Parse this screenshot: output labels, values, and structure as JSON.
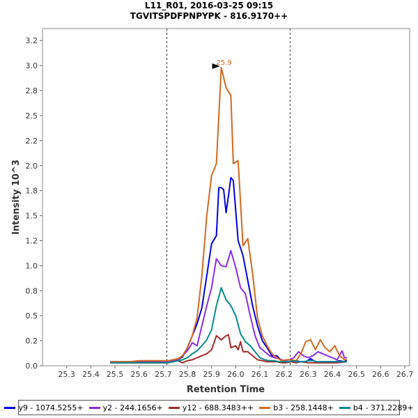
{
  "title_line1": "L11_R01, 2016-03-25 09:15",
  "title_line2": "TGVITSPDFPNPYPK - 816.9170++",
  "chart_data": {
    "type": "line",
    "xlabel": "Retention Time",
    "ylabel": "Intensity 10^3",
    "xlim": [
      25.2,
      26.72
    ],
    "ylim": [
      0,
      3.37
    ],
    "x_ticks": [
      "25.3",
      "25.4",
      "25.5",
      "25.6",
      "25.7",
      "25.8",
      "25.9",
      "26.0",
      "26.1",
      "26.2",
      "26.3",
      "26.4",
      "26.5",
      "26.6",
      "26.7"
    ],
    "y_ticks": [
      "0.0",
      "0.2",
      "0.5",
      "0.8",
      "1.0",
      "1.2",
      "1.5",
      "1.8",
      "2.0",
      "2.2",
      "2.5",
      "2.8",
      "3.0",
      "3.2"
    ],
    "integration_bounds": [
      25.715,
      26.225
    ],
    "peak_annotation": {
      "label": "25.9",
      "x": 25.94,
      "y": 2.98,
      "color": "#d2691e"
    },
    "series": [
      {
        "name": "y9 - 1074.5255+",
        "color": "#0000dd",
        "points": [
          [
            25.48,
            0.04
          ],
          [
            25.5,
            0.04
          ],
          [
            25.52,
            0.04
          ],
          [
            25.54,
            0.04
          ],
          [
            25.56,
            0.04
          ],
          [
            25.58,
            0.04
          ],
          [
            25.6,
            0.04
          ],
          [
            25.62,
            0.04
          ],
          [
            25.64,
            0.04
          ],
          [
            25.66,
            0.04
          ],
          [
            25.68,
            0.04
          ],
          [
            25.7,
            0.04
          ],
          [
            25.72,
            0.04
          ],
          [
            25.74,
            0.05
          ],
          [
            25.76,
            0.06
          ],
          [
            25.78,
            0.09
          ],
          [
            25.8,
            0.18
          ],
          [
            25.82,
            0.3
          ],
          [
            25.84,
            0.42
          ],
          [
            25.86,
            0.58
          ],
          [
            25.88,
            0.9
          ],
          [
            25.9,
            1.22
          ],
          [
            25.92,
            1.3
          ],
          [
            25.93,
            1.78
          ],
          [
            25.94,
            1.78
          ],
          [
            25.95,
            1.76
          ],
          [
            25.96,
            1.53
          ],
          [
            25.97,
            1.7
          ],
          [
            25.98,
            1.88
          ],
          [
            25.99,
            1.85
          ],
          [
            26.0,
            1.55
          ],
          [
            26.01,
            1.25
          ],
          [
            26.03,
            1.1
          ],
          [
            26.05,
            0.85
          ],
          [
            26.07,
            0.6
          ],
          [
            26.09,
            0.4
          ],
          [
            26.11,
            0.25
          ],
          [
            26.13,
            0.18
          ],
          [
            26.15,
            0.1
          ],
          [
            26.17,
            0.1
          ],
          [
            26.19,
            0.05
          ],
          [
            26.21,
            0.04
          ],
          [
            26.23,
            0.04
          ],
          [
            26.25,
            0.05
          ],
          [
            26.27,
            0.04
          ],
          [
            26.29,
            0.04
          ],
          [
            26.31,
            0.07
          ],
          [
            26.33,
            0.04
          ],
          [
            26.35,
            0.04
          ],
          [
            26.37,
            0.04
          ],
          [
            26.39,
            0.04
          ],
          [
            26.41,
            0.04
          ],
          [
            26.43,
            0.05
          ],
          [
            26.45,
            0.04
          ],
          [
            26.46,
            0.06
          ]
        ]
      },
      {
        "name": "y2 - 244.1656+",
        "color": "#8a2be2",
        "points": [
          [
            25.48,
            0.04
          ],
          [
            25.5,
            0.04
          ],
          [
            25.52,
            0.04
          ],
          [
            25.54,
            0.04
          ],
          [
            25.56,
            0.04
          ],
          [
            25.58,
            0.04
          ],
          [
            25.6,
            0.04
          ],
          [
            25.62,
            0.04
          ],
          [
            25.64,
            0.04
          ],
          [
            25.66,
            0.04
          ],
          [
            25.68,
            0.04
          ],
          [
            25.7,
            0.04
          ],
          [
            25.72,
            0.04
          ],
          [
            25.74,
            0.05
          ],
          [
            25.76,
            0.06
          ],
          [
            25.78,
            0.1
          ],
          [
            25.8,
            0.15
          ],
          [
            25.82,
            0.23
          ],
          [
            25.84,
            0.2
          ],
          [
            25.86,
            0.4
          ],
          [
            25.88,
            0.6
          ],
          [
            25.9,
            0.78
          ],
          [
            25.92,
            1.07
          ],
          [
            25.94,
            1.0
          ],
          [
            25.96,
            0.99
          ],
          [
            25.98,
            1.15
          ],
          [
            26.0,
            0.98
          ],
          [
            26.02,
            0.78
          ],
          [
            26.04,
            0.72
          ],
          [
            26.06,
            0.5
          ],
          [
            26.08,
            0.3
          ],
          [
            26.1,
            0.18
          ],
          [
            26.12,
            0.14
          ],
          [
            26.14,
            0.1
          ],
          [
            26.16,
            0.08
          ],
          [
            26.18,
            0.07
          ],
          [
            26.2,
            0.05
          ],
          [
            26.22,
            0.06
          ],
          [
            26.24,
            0.08
          ],
          [
            26.26,
            0.14
          ],
          [
            26.28,
            0.1
          ],
          [
            26.3,
            0.08
          ],
          [
            26.32,
            0.1
          ],
          [
            26.34,
            0.14
          ],
          [
            26.36,
            0.12
          ],
          [
            26.38,
            0.1
          ],
          [
            26.4,
            0.08
          ],
          [
            26.42,
            0.06
          ],
          [
            26.44,
            0.15
          ],
          [
            26.45,
            0.08
          ],
          [
            26.46,
            0.08
          ]
        ]
      },
      {
        "name": "y12 - 688.3483++",
        "color": "#a52a2a",
        "points": [
          [
            25.48,
            0.03
          ],
          [
            25.52,
            0.03
          ],
          [
            25.56,
            0.03
          ],
          [
            25.6,
            0.03
          ],
          [
            25.64,
            0.03
          ],
          [
            25.68,
            0.03
          ],
          [
            25.72,
            0.03
          ],
          [
            25.74,
            0.04
          ],
          [
            25.76,
            0.05
          ],
          [
            25.78,
            0.03
          ],
          [
            25.8,
            0.05
          ],
          [
            25.82,
            0.06
          ],
          [
            25.84,
            0.08
          ],
          [
            25.86,
            0.1
          ],
          [
            25.88,
            0.12
          ],
          [
            25.9,
            0.16
          ],
          [
            25.92,
            0.3
          ],
          [
            25.94,
            0.26
          ],
          [
            25.96,
            0.3
          ],
          [
            25.97,
            0.31
          ],
          [
            25.98,
            0.18
          ],
          [
            26.0,
            0.2
          ],
          [
            26.01,
            0.16
          ],
          [
            26.02,
            0.24
          ],
          [
            26.03,
            0.14
          ],
          [
            26.05,
            0.14
          ],
          [
            26.07,
            0.1
          ],
          [
            26.09,
            0.06
          ],
          [
            26.11,
            0.05
          ],
          [
            26.13,
            0.04
          ],
          [
            26.15,
            0.04
          ],
          [
            26.17,
            0.04
          ],
          [
            26.19,
            0.03
          ],
          [
            26.21,
            0.03
          ],
          [
            26.23,
            0.04
          ],
          [
            26.25,
            0.03
          ],
          [
            26.27,
            0.04
          ],
          [
            26.3,
            0.03
          ],
          [
            26.34,
            0.03
          ],
          [
            26.38,
            0.03
          ],
          [
            26.42,
            0.03
          ],
          [
            26.46,
            0.04
          ]
        ]
      },
      {
        "name": "b3 - 258.1448+",
        "color": "#d2691e",
        "points": [
          [
            25.48,
            0.04
          ],
          [
            25.52,
            0.04
          ],
          [
            25.56,
            0.04
          ],
          [
            25.6,
            0.05
          ],
          [
            25.64,
            0.05
          ],
          [
            25.68,
            0.05
          ],
          [
            25.72,
            0.05
          ],
          [
            25.74,
            0.06
          ],
          [
            25.76,
            0.07
          ],
          [
            25.78,
            0.1
          ],
          [
            25.8,
            0.18
          ],
          [
            25.82,
            0.3
          ],
          [
            25.84,
            0.48
          ],
          [
            25.86,
            0.9
          ],
          [
            25.88,
            1.5
          ],
          [
            25.9,
            1.9
          ],
          [
            25.92,
            2.02
          ],
          [
            25.94,
            2.98
          ],
          [
            25.96,
            2.78
          ],
          [
            25.98,
            2.7
          ],
          [
            25.99,
            2.02
          ],
          [
            26.01,
            2.05
          ],
          [
            26.03,
            1.2
          ],
          [
            26.05,
            1.27
          ],
          [
            26.07,
            0.92
          ],
          [
            26.09,
            0.48
          ],
          [
            26.11,
            0.3
          ],
          [
            26.13,
            0.2
          ],
          [
            26.15,
            0.12
          ],
          [
            26.17,
            0.08
          ],
          [
            26.19,
            0.05
          ],
          [
            26.21,
            0.06
          ],
          [
            26.23,
            0.06
          ],
          [
            26.25,
            0.05
          ],
          [
            26.27,
            0.12
          ],
          [
            26.29,
            0.24
          ],
          [
            26.31,
            0.26
          ],
          [
            26.33,
            0.16
          ],
          [
            26.35,
            0.26
          ],
          [
            26.37,
            0.18
          ],
          [
            26.39,
            0.14
          ],
          [
            26.41,
            0.2
          ],
          [
            26.43,
            0.1
          ],
          [
            26.45,
            0.06
          ],
          [
            26.46,
            0.06
          ]
        ]
      },
      {
        "name": "b4 - 371.2289+",
        "color": "#008b8b",
        "points": [
          [
            25.48,
            0.03
          ],
          [
            25.52,
            0.03
          ],
          [
            25.56,
            0.03
          ],
          [
            25.6,
            0.03
          ],
          [
            25.64,
            0.03
          ],
          [
            25.68,
            0.03
          ],
          [
            25.72,
            0.03
          ],
          [
            25.74,
            0.04
          ],
          [
            25.76,
            0.05
          ],
          [
            25.78,
            0.06
          ],
          [
            25.8,
            0.08
          ],
          [
            25.82,
            0.12
          ],
          [
            25.84,
            0.15
          ],
          [
            25.86,
            0.2
          ],
          [
            25.88,
            0.26
          ],
          [
            25.9,
            0.36
          ],
          [
            25.92,
            0.6
          ],
          [
            25.94,
            0.78
          ],
          [
            25.96,
            0.66
          ],
          [
            25.98,
            0.6
          ],
          [
            26.0,
            0.5
          ],
          [
            26.02,
            0.32
          ],
          [
            26.04,
            0.24
          ],
          [
            26.06,
            0.2
          ],
          [
            26.08,
            0.14
          ],
          [
            26.1,
            0.08
          ],
          [
            26.12,
            0.06
          ],
          [
            26.14,
            0.05
          ],
          [
            26.16,
            0.05
          ],
          [
            26.18,
            0.04
          ],
          [
            26.2,
            0.04
          ],
          [
            26.22,
            0.04
          ],
          [
            26.24,
            0.05
          ],
          [
            26.26,
            0.04
          ],
          [
            26.28,
            0.04
          ],
          [
            26.3,
            0.05
          ],
          [
            26.32,
            0.05
          ],
          [
            26.34,
            0.04
          ],
          [
            26.38,
            0.04
          ],
          [
            26.42,
            0.04
          ],
          [
            26.46,
            0.04
          ]
        ]
      }
    ]
  }
}
